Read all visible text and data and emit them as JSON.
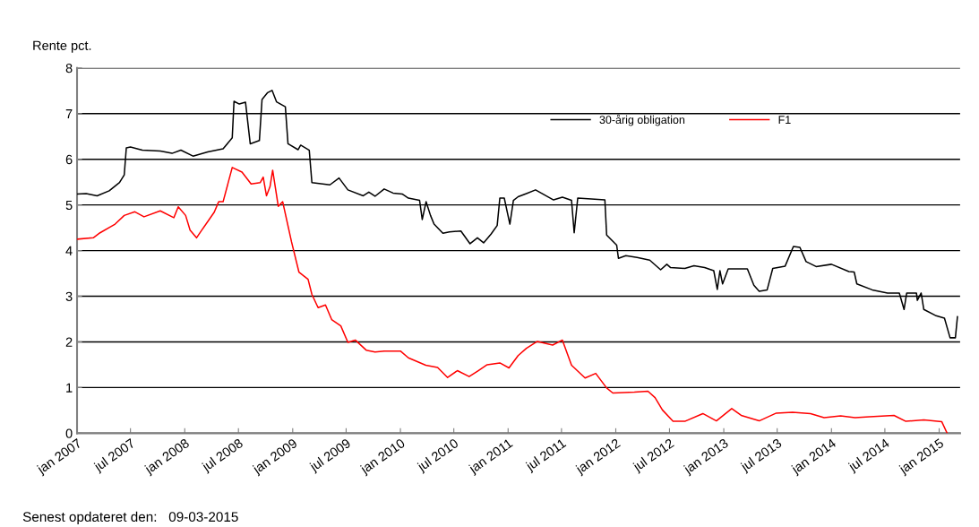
{
  "chart_data": {
    "type": "line",
    "ylabel": "Rente pct.",
    "annotations": [
      "Senest opdateret den:   09-03-2015"
    ],
    "xlim": [
      "2007-01-01",
      "2015-03-13"
    ],
    "ylim": [
      0,
      8
    ],
    "yticks": [
      0,
      1,
      2,
      3,
      4,
      5,
      6,
      7,
      8
    ],
    "xticks": [
      {
        "value": "2007-01-01",
        "label": "jan 2007"
      },
      {
        "value": "2007-07-01",
        "label": "jul 2007"
      },
      {
        "value": "2008-01-01",
        "label": "jan 2008"
      },
      {
        "value": "2008-07-01",
        "label": "jul 2008"
      },
      {
        "value": "2009-01-01",
        "label": "jan 2009"
      },
      {
        "value": "2009-07-01",
        "label": "jul 2009"
      },
      {
        "value": "2010-01-01",
        "label": "jan 2010"
      },
      {
        "value": "2010-07-01",
        "label": "jul 2010"
      },
      {
        "value": "2011-01-01",
        "label": "jan 2011"
      },
      {
        "value": "2011-07-01",
        "label": "jul 2011"
      },
      {
        "value": "2012-01-01",
        "label": "jan 2012"
      },
      {
        "value": "2012-07-01",
        "label": "jul 2012"
      },
      {
        "value": "2013-01-01",
        "label": "jan 2013"
      },
      {
        "value": "2013-07-01",
        "label": "jul 2013"
      },
      {
        "value": "2014-01-01",
        "label": "jan 2014"
      },
      {
        "value": "2014-07-01",
        "label": "jul 2014"
      },
      {
        "value": "2015-01-01",
        "label": "jan 2015"
      }
    ],
    "grid": "y",
    "legend": "top right",
    "marker": "none",
    "line_style": "solid",
    "series": [
      {
        "name": "30-årig obligation",
        "color": "#000000",
        "x": [
          "2007-01-01",
          "2007-02-01",
          "2007-03-10",
          "2007-04-20",
          "2007-05-25",
          "2007-06-10",
          "2007-06-17",
          "2007-07-01",
          "2007-08-10",
          "2007-10-10",
          "2007-11-19",
          "2007-12-19",
          "2008-01-29",
          "2008-03-19",
          "2008-05-10",
          "2008-06-10",
          "2008-06-16",
          "2008-07-04",
          "2008-07-25",
          "2008-08-10",
          "2008-09-10",
          "2008-09-19",
          "2008-10-08",
          "2008-10-23",
          "2008-11-07",
          "2008-12-07",
          "2008-12-16",
          "2009-01-19",
          "2009-01-28",
          "2009-02-26",
          "2009-03-07",
          "2009-05-07",
          "2009-06-07",
          "2009-07-07",
          "2009-08-28",
          "2009-09-16",
          "2009-10-07",
          "2009-11-07",
          "2009-12-07",
          "2010-01-07",
          "2010-01-28",
          "2010-03-07",
          "2010-03-16",
          "2010-03-29",
          "2010-04-13",
          "2010-04-25",
          "2010-05-25",
          "2010-06-16",
          "2010-07-25",
          "2010-08-25",
          "2010-09-19",
          "2010-10-10",
          "2010-11-04",
          "2010-11-25",
          "2010-12-04",
          "2010-12-19",
          "2011-01-07",
          "2011-01-19",
          "2011-02-04",
          "2011-03-04",
          "2011-04-04",
          "2011-06-04",
          "2011-07-04",
          "2011-08-04",
          "2011-08-13",
          "2011-08-25",
          "2011-11-25",
          "2011-12-01",
          "2012-01-04",
          "2012-01-10",
          "2012-02-04",
          "2012-03-13",
          "2012-04-25",
          "2012-06-01",
          "2012-06-22",
          "2012-07-04",
          "2012-08-22",
          "2012-09-22",
          "2012-10-28",
          "2012-11-28",
          "2012-12-10",
          "2012-12-19",
          "2012-12-28",
          "2013-01-16",
          "2013-03-22",
          "2013-04-13",
          "2013-05-01",
          "2013-05-28",
          "2013-06-16",
          "2013-07-28",
          "2013-08-25",
          "2013-09-16",
          "2013-10-07",
          "2013-11-10",
          "2014-01-01",
          "2014-03-01",
          "2014-03-19",
          "2014-03-28",
          "2014-05-19",
          "2014-07-10",
          "2014-08-19",
          "2014-09-04",
          "2014-09-13",
          "2014-10-16",
          "2014-10-19",
          "2014-11-01",
          "2014-11-10",
          "2014-12-19",
          "2015-01-19",
          "2015-02-07",
          "2015-02-25",
          "2015-03-04"
        ],
        "values": [
          5.24,
          5.25,
          5.2,
          5.31,
          5.49,
          5.66,
          6.25,
          6.27,
          6.2,
          6.18,
          6.13,
          6.2,
          6.07,
          6.16,
          6.23,
          6.47,
          7.27,
          7.21,
          7.25,
          6.34,
          6.41,
          7.31,
          7.46,
          7.51,
          7.26,
          7.15,
          6.34,
          6.21,
          6.31,
          6.2,
          5.49,
          5.44,
          5.59,
          5.33,
          5.2,
          5.28,
          5.19,
          5.35,
          5.26,
          5.24,
          5.15,
          5.1,
          4.68,
          5.07,
          4.77,
          4.58,
          4.38,
          4.41,
          4.43,
          4.15,
          4.28,
          4.17,
          4.36,
          4.55,
          5.15,
          5.15,
          4.58,
          5.1,
          5.18,
          5.25,
          5.33,
          5.11,
          5.17,
          5.1,
          4.39,
          5.15,
          5.11,
          4.34,
          4.12,
          3.83,
          3.89,
          3.85,
          3.79,
          3.58,
          3.7,
          3.63,
          3.61,
          3.67,
          3.63,
          3.56,
          3.15,
          3.56,
          3.27,
          3.6,
          3.6,
          3.24,
          3.11,
          3.14,
          3.61,
          3.66,
          4.09,
          4.07,
          3.76,
          3.65,
          3.7,
          3.54,
          3.53,
          3.27,
          3.14,
          3.07,
          3.07,
          2.71,
          3.07,
          3.07,
          2.91,
          3.07,
          2.71,
          2.58,
          2.52,
          2.09,
          2.09,
          2.55
        ]
      },
      {
        "name": "F1",
        "color": "#ff0000",
        "x": [
          "2007-01-01",
          "2007-02-25",
          "2007-03-20",
          "2007-05-10",
          "2007-06-10",
          "2007-07-16",
          "2007-08-16",
          "2007-10-10",
          "2007-11-25",
          "2007-12-10",
          "2008-01-04",
          "2008-01-19",
          "2008-02-10",
          "2008-02-28",
          "2008-04-10",
          "2008-04-25",
          "2008-05-10",
          "2008-06-10",
          "2008-07-13",
          "2008-08-13",
          "2008-09-13",
          "2008-09-23",
          "2008-10-04",
          "2008-10-16",
          "2008-10-25",
          "2008-11-13",
          "2008-11-28",
          "2008-12-28",
          "2009-01-22",
          "2009-02-22",
          "2009-03-07",
          "2009-03-28",
          "2009-04-22",
          "2009-05-13",
          "2009-06-13",
          "2009-07-07",
          "2009-08-01",
          "2009-09-07",
          "2009-10-07",
          "2009-11-07",
          "2010-01-01",
          "2010-01-28",
          "2010-03-28",
          "2010-05-07",
          "2010-06-10",
          "2010-07-13",
          "2010-08-22",
          "2010-09-22",
          "2010-10-22",
          "2010-12-04",
          "2011-01-04",
          "2011-02-04",
          "2011-03-04",
          "2011-04-10",
          "2011-06-01",
          "2011-07-04",
          "2011-08-04",
          "2011-09-19",
          "2011-10-25",
          "2011-12-01",
          "2011-12-22",
          "2012-03-04",
          "2012-04-19",
          "2012-05-13",
          "2012-06-07",
          "2012-07-13",
          "2012-08-22",
          "2012-10-22",
          "2012-12-07",
          "2013-01-28",
          "2013-03-01",
          "2013-05-01",
          "2013-06-28",
          "2013-08-22",
          "2013-10-22",
          "2013-12-07",
          "2014-02-01",
          "2014-03-22",
          "2014-05-10",
          "2014-08-01",
          "2014-09-10",
          "2014-11-10",
          "2015-01-10",
          "2015-01-28"
        ],
        "values": [
          4.25,
          4.28,
          4.39,
          4.58,
          4.77,
          4.85,
          4.74,
          4.87,
          4.72,
          4.96,
          4.77,
          4.45,
          4.28,
          4.45,
          4.84,
          5.07,
          5.07,
          5.82,
          5.72,
          5.46,
          5.49,
          5.61,
          5.2,
          5.4,
          5.76,
          4.97,
          5.07,
          4.19,
          3.53,
          3.37,
          3.04,
          2.75,
          2.81,
          2.49,
          2.35,
          1.99,
          2.04,
          1.82,
          1.78,
          1.8,
          1.8,
          1.65,
          1.49,
          1.44,
          1.22,
          1.37,
          1.24,
          1.37,
          1.5,
          1.54,
          1.43,
          1.7,
          1.86,
          2.01,
          1.93,
          2.04,
          1.49,
          1.21,
          1.31,
          0.99,
          0.88,
          0.9,
          0.92,
          0.78,
          0.51,
          0.26,
          0.26,
          0.43,
          0.27,
          0.54,
          0.39,
          0.27,
          0.44,
          0.46,
          0.43,
          0.34,
          0.38,
          0.34,
          0.36,
          0.39,
          0.26,
          0.29,
          0.25,
          0.0
        ]
      }
    ]
  }
}
